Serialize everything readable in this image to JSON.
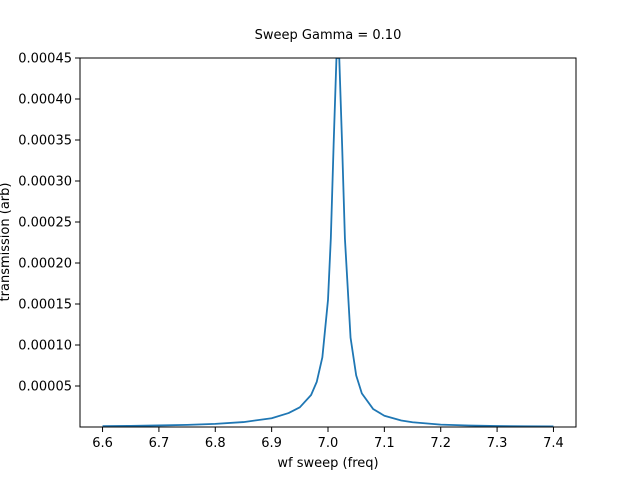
{
  "chart_data": {
    "type": "line",
    "title": "Sweep Gamma = 0.10",
    "xlabel": "wf sweep (freq)",
    "ylabel": "transmission (arb)",
    "xlim": [
      6.56,
      7.44
    ],
    "ylim": [
      0.0,
      0.00045
    ],
    "x_ticks": [
      6.6,
      6.7,
      6.8,
      6.9,
      7.0,
      7.1,
      7.2,
      7.3,
      7.4
    ],
    "x_tick_labels": [
      "6.6",
      "6.7",
      "6.8",
      "6.9",
      "7.0",
      "7.1",
      "7.2",
      "7.3",
      "7.4"
    ],
    "y_ticks": [
      5e-05,
      0.0001,
      0.00015,
      0.0002,
      0.00025,
      0.0003,
      0.00035,
      0.0004,
      0.00045
    ],
    "y_tick_labels": [
      "0.00005",
      "0.00010",
      "0.00015",
      "0.00020",
      "0.00025",
      "0.00030",
      "0.00035",
      "0.00040",
      "0.00045"
    ],
    "grid": false,
    "series": [
      {
        "color": "#1f77b4",
        "x": [
          6.6,
          6.65,
          6.7,
          6.75,
          6.8,
          6.85,
          6.9,
          6.93,
          6.95,
          6.97,
          6.98,
          6.99,
          7.0,
          7.005,
          7.01,
          7.015,
          7.02,
          7.025,
          7.03,
          7.04,
          7.05,
          7.06,
          7.08,
          7.1,
          7.13,
          7.15,
          7.2,
          7.25,
          7.3,
          7.35,
          7.4
        ],
        "y": [
          1.1e-06,
          1.4e-06,
          1.9e-06,
          2.6e-06,
          3.8e-06,
          6e-06,
          1.07e-05,
          1.7e-05,
          2.4e-05,
          3.9e-05,
          5.5e-05,
          8.5e-05,
          0.000155,
          0.00023,
          0.000345,
          0.00045,
          0.00045,
          0.000345,
          0.00023,
          0.000109,
          6.3e-05,
          4.1e-05,
          2.2e-05,
          1.37e-05,
          7.9e-06,
          5.8e-06,
          2.9e-06,
          1.8e-06,
          1.2e-06,
          9e-07,
          7e-07
        ]
      }
    ]
  }
}
